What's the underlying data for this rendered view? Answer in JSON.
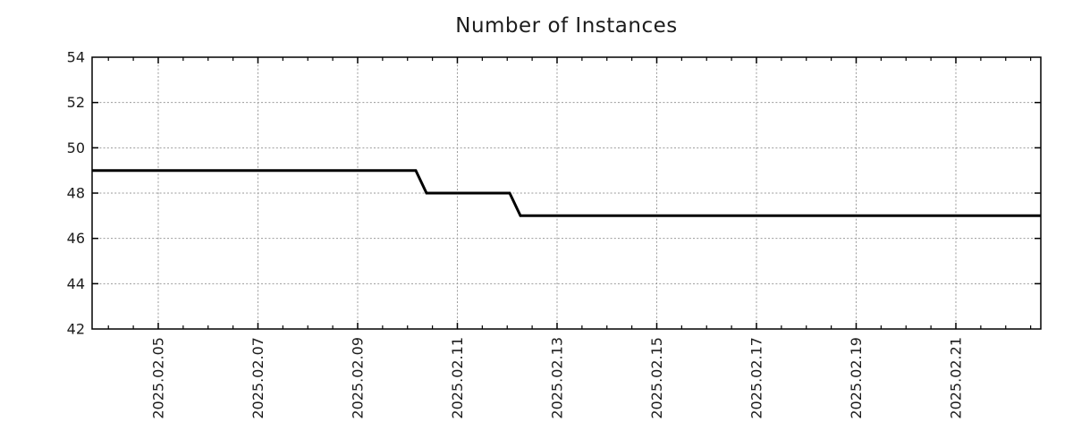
{
  "chart_data": {
    "type": "line",
    "subtype": "step",
    "title": "Number of Instances",
    "legend": {
      "show": false
    },
    "grid": {
      "show": true,
      "style": "dotted",
      "color": "#9a9a9a"
    },
    "x_axis": {
      "label": "",
      "kind": "date",
      "unit_note": "days since 2025-02-01 00:00",
      "range_days": [
        2.673,
        21.704
      ],
      "minor_tick_interval_days": 0.5,
      "major_ticks": [
        {
          "day": 4,
          "label": "2025.02.05"
        },
        {
          "day": 6,
          "label": "2025.02.07"
        },
        {
          "day": 8,
          "label": "2025.02.09"
        },
        {
          "day": 10,
          "label": "2025.02.11"
        },
        {
          "day": 12,
          "label": "2025.02.13"
        },
        {
          "day": 14,
          "label": "2025.02.15"
        },
        {
          "day": 16,
          "label": "2025.02.17"
        },
        {
          "day": 18,
          "label": "2025.02.19"
        },
        {
          "day": 20,
          "label": "2025.02.21"
        }
      ]
    },
    "y_axis": {
      "label": "",
      "range": [
        42,
        54
      ],
      "major_tick_interval": 2,
      "major_ticks": [
        {
          "value": 42,
          "label": "42"
        },
        {
          "value": 44,
          "label": "44"
        },
        {
          "value": 46,
          "label": "46"
        },
        {
          "value": 48,
          "label": "48"
        },
        {
          "value": 50,
          "label": "50"
        },
        {
          "value": 52,
          "label": "52"
        },
        {
          "value": 54,
          "label": "54"
        }
      ]
    },
    "series": [
      {
        "name": "instances",
        "color": "#000000",
        "line_width": 3,
        "points": [
          {
            "day": 2.673,
            "value": 49,
            "approx_time": "2025.02.03 16:00"
          },
          {
            "day": 9.166,
            "value": 49,
            "approx_time": "2025.02.10 04:00"
          },
          {
            "day": 9.381,
            "value": 48,
            "approx_time": "2025.02.10 09:00"
          },
          {
            "day": 11.049,
            "value": 48,
            "approx_time": "2025.02.12 01:00"
          },
          {
            "day": 11.265,
            "value": 47,
            "approx_time": "2025.02.12 06:30"
          },
          {
            "day": 21.704,
            "value": 47,
            "approx_time": "2025.02.22 17:00"
          }
        ],
        "summary": "49 instances until ~2025.02.10, 48 until ~2025.02.12, then 47 through end of range"
      }
    ],
    "style": {
      "border_color": "#000000",
      "border_width": 1.5,
      "major_tick_len": 7,
      "minor_tick_len": 4,
      "background": "#ffffff"
    }
  }
}
